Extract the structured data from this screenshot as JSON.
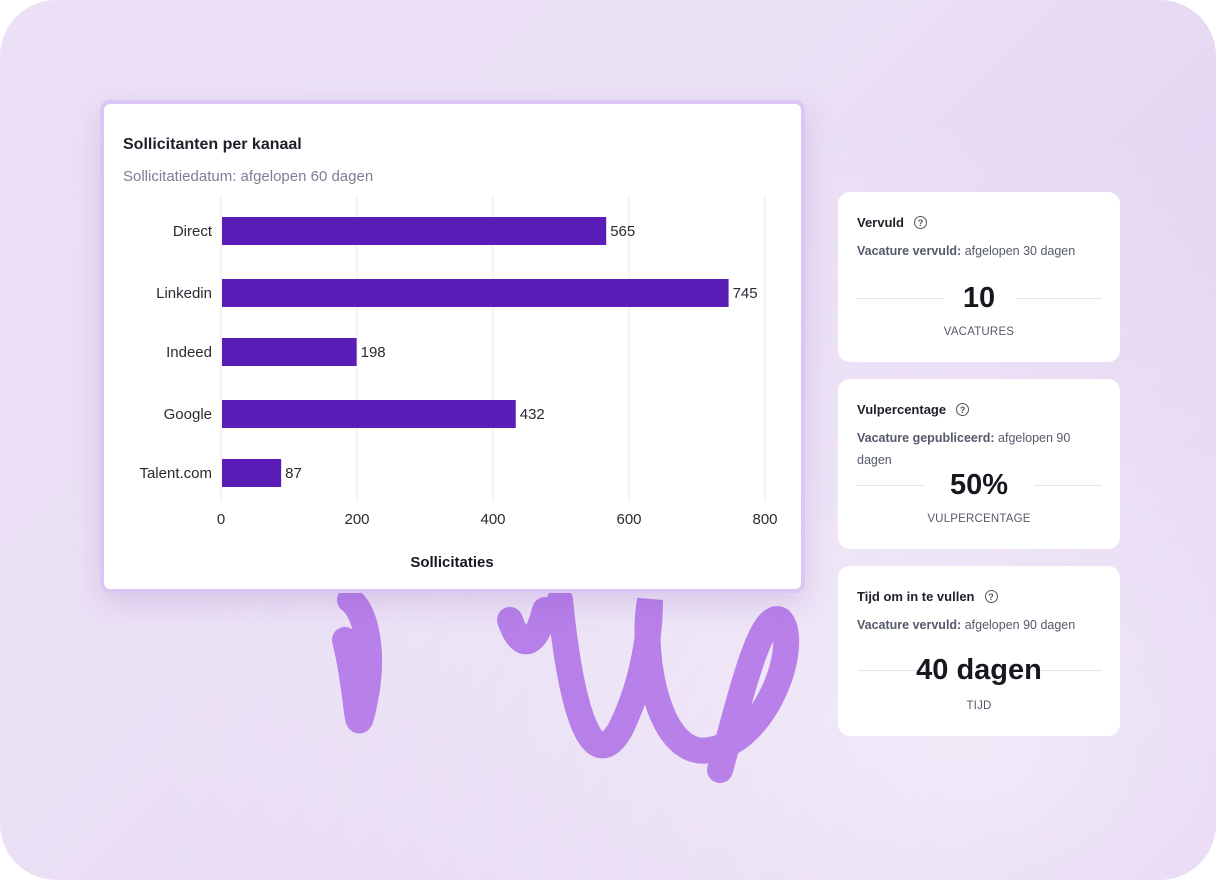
{
  "chart_card": {
    "title": "Sollicitanten per kanaal",
    "subtitle": "Sollicitatiedatum: afgelopen 60 dagen"
  },
  "chart_data": {
    "type": "bar",
    "orientation": "horizontal",
    "categories": [
      "Direct",
      "Linkedin",
      "Indeed",
      "Google",
      "Talent.com"
    ],
    "values": [
      565,
      745,
      198,
      432,
      87
    ],
    "xlabel": "Sollicitaties",
    "ylabel": "",
    "xlim": [
      0,
      800
    ],
    "xticks": [
      "0",
      "200",
      "400",
      "600",
      "800"
    ],
    "grid": true,
    "bar_color": "#5a1db8"
  },
  "stats": [
    {
      "title": "Vervuld",
      "desc_bold": "Vacature vervuld:",
      "desc": " afgelopen 30 dagen",
      "value": "10",
      "unit": "VACATURES"
    },
    {
      "title": "Vulpercentage",
      "desc_bold": "Vacature gepubliceerd:",
      "desc": " afgelopen 90 dagen",
      "value": "50%",
      "unit": "VULPERCENTAGE"
    },
    {
      "title": "Tijd om in te vullen",
      "desc_bold": "Vacature vervuld:",
      "desc": " afgelopen 90 dagen",
      "value": "40 dagen",
      "unit": "TIJD"
    }
  ],
  "help_icon": "question-circle-icon"
}
